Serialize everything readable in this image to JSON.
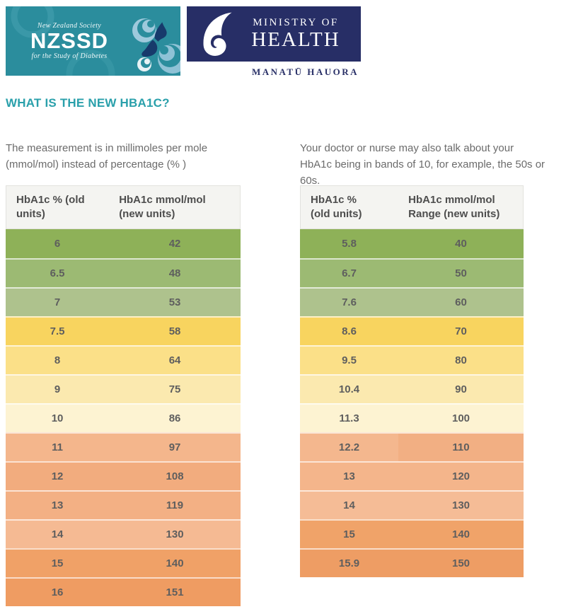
{
  "logos": {
    "nzssd": {
      "bg_color": "#2b8d9d",
      "line1": "New Zealand Society",
      "name": "NZSSD",
      "line2": "for the Study of Diabetes"
    },
    "moh": {
      "bg_color": "#272e66",
      "line1": "MINISTRY OF",
      "line2": "HEALTH",
      "subtitle": "MANATŪ HAUORA"
    }
  },
  "heading": {
    "text": "WHAT IS THE NEW HBA1C?",
    "color": "#2aa0ab"
  },
  "intro_left": {
    "line1": "The measurement is in millimoles per mole",
    "line2": "(mmol/mol) instead of percentage (% )"
  },
  "intro_right": {
    "line1": "Your doctor or nurse may also talk about your",
    "line2": "HbA1c being in bands of 10, for example, the 50s or 60s."
  },
  "left_table": {
    "headers": [
      {
        "line1": "HbA1c % (old",
        "line2": "units)"
      },
      {
        "line1": "HbA1c mmol/mol",
        "line2": "(new units)"
      }
    ],
    "rows": [
      {
        "old": "6",
        "mmol": "42",
        "bg": "#8eb158"
      },
      {
        "old": "6.5",
        "mmol": "48",
        "bg": "#9cba73"
      },
      {
        "old": "7",
        "mmol": "53",
        "bg": "#aec28d"
      },
      {
        "old": "7.5",
        "mmol": "58",
        "bg": "#f8d45f"
      },
      {
        "old": "8",
        "mmol": "64",
        "bg": "#fbe088"
      },
      {
        "old": "9",
        "mmol": "75",
        "bg": "#fbe9af"
      },
      {
        "old": "10",
        "mmol": "86",
        "bg": "#fdf3d2"
      },
      {
        "old": "11",
        "mmol": "97",
        "bg": "#f4b68c"
      },
      {
        "old": "12",
        "mmol": "108",
        "bg": "#f2ac7e"
      },
      {
        "old": "13",
        "mmol": "119",
        "bg": "#f3b084"
      },
      {
        "old": "14",
        "mmol": "130",
        "bg": "#f5ba93"
      },
      {
        "old": "15",
        "mmol": "140",
        "bg": "#f0a167"
      },
      {
        "old": "16",
        "mmol": "151",
        "bg": "#ef9c62"
      }
    ]
  },
  "right_table": {
    "headers": [
      {
        "line1": "HbA1c %",
        "line2": "(old units)"
      },
      {
        "line1": "HbA1c mmol/mol",
        "line2": "Range (new units)"
      }
    ],
    "rows": [
      {
        "old": "5.8",
        "mmol": "40",
        "bg": "#8eb158"
      },
      {
        "old": "6.7",
        "mmol": "50",
        "bg": "#9cba73"
      },
      {
        "old": "7.6",
        "mmol": "60",
        "bg": "#aec28d"
      },
      {
        "old": "8.6",
        "mmol": "70",
        "bg": "#f8d45f"
      },
      {
        "old": "9.5",
        "mmol": "80",
        "bg": "#fbe088"
      },
      {
        "old": "10.4",
        "mmol": "90",
        "bg": "#fbe9af"
      },
      {
        "old": "11.3",
        "mmol": "100",
        "bg": "#fdf3d2"
      },
      {
        "old": "12.2",
        "mmol": "110",
        "bg": "#f4b78e",
        "bg2": "#f2af83"
      },
      {
        "old": "13",
        "mmol": "120",
        "bg": "#f4b58b"
      },
      {
        "old": "14",
        "mmol": "130",
        "bg": "#f5bc96"
      },
      {
        "old": "15",
        "mmol": "140",
        "bg": "#f0a369"
      },
      {
        "old": "15.9",
        "mmol": "150",
        "bg": "#ee9d64"
      }
    ]
  }
}
